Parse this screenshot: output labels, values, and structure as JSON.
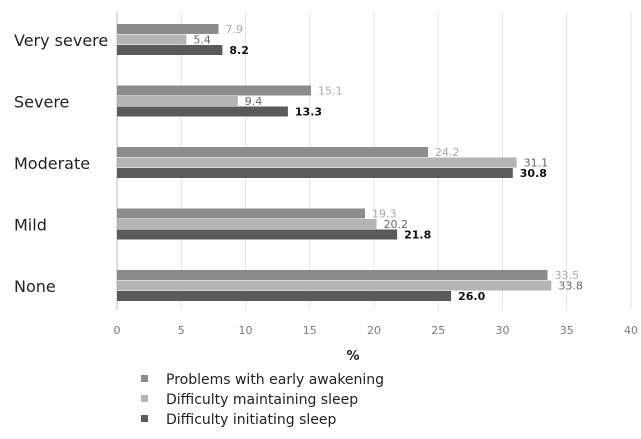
{
  "chart_data": {
    "type": "bar",
    "orientation": "horizontal",
    "categories": [
      "Very severe",
      "Severe",
      "Moderate",
      "Mild",
      "None"
    ],
    "series": [
      {
        "name": "Problems with early awakening",
        "values": [
          7.9,
          15.1,
          24.2,
          19.3,
          33.5
        ],
        "color": "#8c8c8c",
        "label_color": "#aaaaaa",
        "label_bold": false
      },
      {
        "name": "Difficulty maintaining sleep",
        "values": [
          5.4,
          9.4,
          31.1,
          20.2,
          33.8
        ],
        "color": "#b5b5b5",
        "label_color": "#666666",
        "label_bold": false
      },
      {
        "name": "Difficulty initiating sleep",
        "values": [
          8.2,
          13.3,
          30.8,
          21.8,
          26.0
        ],
        "color": "#5a5a5a",
        "label_color": "#111111",
        "label_bold": true
      }
    ],
    "value_labels": [
      [
        "7.9",
        "15.1",
        "24.2",
        "19.3",
        "33.5"
      ],
      [
        "5.4",
        "9.4",
        "31.1",
        "20.2",
        "33.8"
      ],
      [
        "8.2",
        "13.3",
        "30.8",
        "21.8",
        "26.0"
      ]
    ],
    "xticks": [
      "0",
      "5",
      "10",
      "15",
      "20",
      "25",
      "30",
      "35",
      "40"
    ],
    "xlim": [
      0,
      40
    ],
    "xlabel": "%",
    "legend_placement": "bottom",
    "grid": true
  }
}
